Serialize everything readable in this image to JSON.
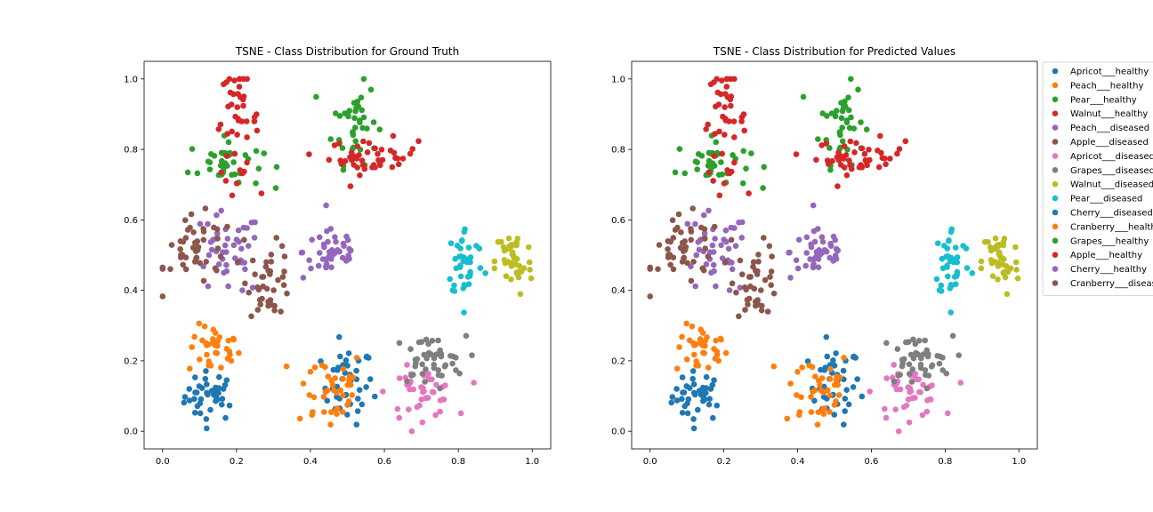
{
  "chart_data": [
    {
      "type": "scatter",
      "title": "TSNE - Class Distribution for Ground Truth",
      "xlim": [
        -0.05,
        1.05
      ],
      "ylim": [
        -0.05,
        1.05
      ],
      "xticks": [
        "0.0",
        "0.2",
        "0.4",
        "0.6",
        "0.8",
        "1.0"
      ],
      "yticks": [
        "0.0",
        "0.2",
        "0.4",
        "0.6",
        "0.8",
        "1.0"
      ],
      "grid": false,
      "clusters": [
        {
          "class": 0,
          "cx": 0.13,
          "cy": 0.1,
          "sx": 0.035,
          "sy": 0.035,
          "n": 40
        },
        {
          "class": 10,
          "cx": 0.5,
          "cy": 0.13,
          "sx": 0.035,
          "sy": 0.055,
          "n": 40
        },
        {
          "class": 1,
          "cx": 0.14,
          "cy": 0.23,
          "sx": 0.035,
          "sy": 0.035,
          "n": 35
        },
        {
          "class": 11,
          "cx": 0.45,
          "cy": 0.12,
          "sx": 0.05,
          "sy": 0.06,
          "n": 40
        },
        {
          "class": 2,
          "cx": 0.52,
          "cy": 0.88,
          "sx": 0.03,
          "sy": 0.06,
          "n": 40
        },
        {
          "class": 12,
          "cx": 0.17,
          "cy": 0.76,
          "sx": 0.05,
          "sy": 0.035,
          "n": 40
        },
        {
          "class": 3,
          "cx": 0.57,
          "cy": 0.78,
          "sx": 0.06,
          "sy": 0.025,
          "n": 45
        },
        {
          "class": 13,
          "cx": 0.2,
          "cy": 0.88,
          "sx": 0.03,
          "sy": 0.08,
          "n": 45
        },
        {
          "class": 4,
          "cx": 0.46,
          "cy": 0.51,
          "sx": 0.04,
          "sy": 0.04,
          "n": 45
        },
        {
          "class": 14,
          "cx": 0.17,
          "cy": 0.5,
          "sx": 0.05,
          "sy": 0.06,
          "n": 45
        },
        {
          "class": 5,
          "cx": 0.1,
          "cy": 0.51,
          "sx": 0.05,
          "sy": 0.05,
          "n": 45
        },
        {
          "class": 15,
          "cx": 0.29,
          "cy": 0.43,
          "sx": 0.03,
          "sy": 0.05,
          "n": 40
        },
        {
          "class": 6,
          "cx": 0.7,
          "cy": 0.11,
          "sx": 0.045,
          "sy": 0.035,
          "n": 45
        },
        {
          "class": 7,
          "cx": 0.72,
          "cy": 0.2,
          "sx": 0.05,
          "sy": 0.035,
          "n": 45
        },
        {
          "class": 8,
          "cx": 0.95,
          "cy": 0.48,
          "sx": 0.025,
          "sy": 0.05,
          "n": 45
        },
        {
          "class": 9,
          "cx": 0.82,
          "cy": 0.48,
          "sx": 0.025,
          "sy": 0.05,
          "n": 40
        }
      ]
    },
    {
      "type": "scatter",
      "title": "TSNE - Class Distribution for Predicted Values",
      "xlim": [
        -0.05,
        1.05
      ],
      "ylim": [
        -0.05,
        1.05
      ],
      "xticks": [
        "0.0",
        "0.2",
        "0.4",
        "0.6",
        "0.8",
        "1.0"
      ],
      "yticks": [
        "0.0",
        "0.2",
        "0.4",
        "0.6",
        "0.8",
        "1.0"
      ],
      "grid": false,
      "clusters": [
        {
          "class": 0,
          "cx": 0.13,
          "cy": 0.1,
          "sx": 0.035,
          "sy": 0.035,
          "n": 40
        },
        {
          "class": 10,
          "cx": 0.5,
          "cy": 0.13,
          "sx": 0.035,
          "sy": 0.055,
          "n": 40
        },
        {
          "class": 1,
          "cx": 0.14,
          "cy": 0.23,
          "sx": 0.035,
          "sy": 0.035,
          "n": 35
        },
        {
          "class": 11,
          "cx": 0.45,
          "cy": 0.12,
          "sx": 0.05,
          "sy": 0.06,
          "n": 40
        },
        {
          "class": 2,
          "cx": 0.52,
          "cy": 0.88,
          "sx": 0.03,
          "sy": 0.06,
          "n": 40
        },
        {
          "class": 12,
          "cx": 0.17,
          "cy": 0.76,
          "sx": 0.05,
          "sy": 0.035,
          "n": 40
        },
        {
          "class": 3,
          "cx": 0.57,
          "cy": 0.78,
          "sx": 0.06,
          "sy": 0.025,
          "n": 45
        },
        {
          "class": 13,
          "cx": 0.2,
          "cy": 0.88,
          "sx": 0.03,
          "sy": 0.08,
          "n": 45
        },
        {
          "class": 4,
          "cx": 0.46,
          "cy": 0.51,
          "sx": 0.04,
          "sy": 0.04,
          "n": 45
        },
        {
          "class": 14,
          "cx": 0.17,
          "cy": 0.5,
          "sx": 0.05,
          "sy": 0.06,
          "n": 45
        },
        {
          "class": 5,
          "cx": 0.1,
          "cy": 0.51,
          "sx": 0.05,
          "sy": 0.05,
          "n": 45
        },
        {
          "class": 15,
          "cx": 0.29,
          "cy": 0.43,
          "sx": 0.03,
          "sy": 0.05,
          "n": 40
        },
        {
          "class": 6,
          "cx": 0.7,
          "cy": 0.11,
          "sx": 0.045,
          "sy": 0.035,
          "n": 45
        },
        {
          "class": 7,
          "cx": 0.72,
          "cy": 0.2,
          "sx": 0.05,
          "sy": 0.035,
          "n": 45
        },
        {
          "class": 8,
          "cx": 0.95,
          "cy": 0.48,
          "sx": 0.025,
          "sy": 0.05,
          "n": 45
        },
        {
          "class": 9,
          "cx": 0.82,
          "cy": 0.48,
          "sx": 0.025,
          "sy": 0.05,
          "n": 40
        }
      ]
    }
  ],
  "legend": {
    "placement": "outside-right",
    "entries": [
      {
        "label": "Apricot___healthy",
        "color": "#1f77b4"
      },
      {
        "label": "Peach___healthy",
        "color": "#ff7f0e"
      },
      {
        "label": "Pear___healthy",
        "color": "#2ca02c"
      },
      {
        "label": "Walnut___healthy",
        "color": "#d62728"
      },
      {
        "label": "Peach___diseased",
        "color": "#9467bd"
      },
      {
        "label": "Apple___diseased",
        "color": "#8c564b"
      },
      {
        "label": "Apricot___diseased",
        "color": "#e377c2"
      },
      {
        "label": "Grapes___diseased",
        "color": "#7f7f7f"
      },
      {
        "label": "Walnut___diseased",
        "color": "#bcbd22"
      },
      {
        "label": "Pear___diseased",
        "color": "#17becf"
      },
      {
        "label": "Cherry___diseased",
        "color": "#1f77b4"
      },
      {
        "label": "Cranberry___healthy",
        "color": "#ff7f0e"
      },
      {
        "label": "Grapes___healthy",
        "color": "#2ca02c"
      },
      {
        "label": "Apple___healthy",
        "color": "#d62728"
      },
      {
        "label": "Cherry___healthy",
        "color": "#9467bd"
      },
      {
        "label": "Cranberry___diseased",
        "color": "#8c564b"
      }
    ]
  }
}
